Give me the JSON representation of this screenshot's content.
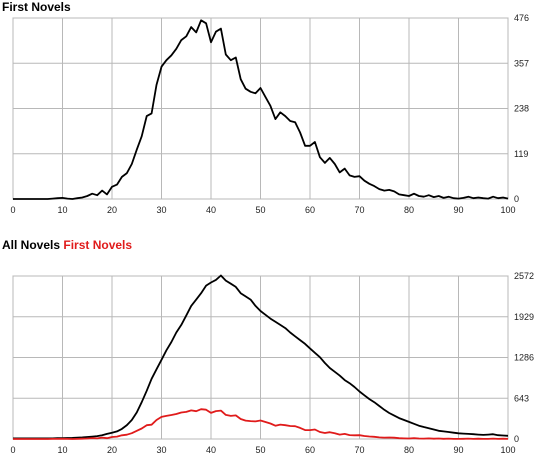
{
  "chart_data": [
    {
      "type": "line",
      "title": "First Novels",
      "xlabel": "",
      "ylabel": "",
      "xlim": [
        0,
        100
      ],
      "ylim": [
        0,
        476
      ],
      "x_ticks": [
        0,
        10,
        20,
        30,
        40,
        50,
        60,
        70,
        80,
        90,
        100
      ],
      "y_ticks": [
        0,
        119,
        238,
        357,
        476
      ],
      "y_axis_side": "right",
      "grid": true,
      "series": [
        {
          "name": "",
          "color": "#000000",
          "x": [
            0,
            1,
            2,
            3,
            4,
            5,
            6,
            7,
            8,
            9,
            10,
            11,
            12,
            13,
            14,
            15,
            16,
            17,
            18,
            19,
            20,
            21,
            22,
            23,
            24,
            25,
            26,
            27,
            28,
            29,
            30,
            31,
            32,
            33,
            34,
            35,
            36,
            37,
            38,
            39,
            40,
            41,
            42,
            43,
            44,
            45,
            46,
            47,
            48,
            49,
            50,
            51,
            52,
            53,
            54,
            55,
            56,
            57,
            58,
            59,
            60,
            61,
            62,
            63,
            64,
            65,
            66,
            67,
            68,
            69,
            70,
            71,
            72,
            73,
            74,
            75,
            76,
            77,
            78,
            79,
            80,
            81,
            82,
            83,
            84,
            85,
            86,
            87,
            88,
            89,
            90,
            91,
            92,
            93,
            94,
            95,
            96,
            97,
            98,
            99,
            100
          ],
          "values": [
            0,
            0,
            0,
            0,
            0,
            0,
            0,
            0,
            1,
            2,
            3,
            1,
            0,
            2,
            4,
            8,
            14,
            10,
            22,
            12,
            32,
            38,
            58,
            68,
            92,
            130,
            165,
            218,
            225,
            300,
            348,
            365,
            378,
            395,
            418,
            428,
            452,
            438,
            470,
            462,
            412,
            440,
            448,
            380,
            365,
            372,
            315,
            290,
            282,
            278,
            292,
            268,
            245,
            210,
            228,
            218,
            205,
            202,
            175,
            140,
            140,
            150,
            110,
            95,
            108,
            92,
            70,
            80,
            62,
            58,
            60,
            48,
            40,
            34,
            26,
            22,
            24,
            20,
            12,
            10,
            8,
            14,
            8,
            6,
            10,
            5,
            8,
            3,
            6,
            2,
            1,
            3,
            6,
            2,
            4,
            2,
            1,
            6,
            2,
            4,
            1
          ]
        }
      ]
    },
    {
      "type": "line",
      "title": "All Novels First Novels",
      "legend": [
        {
          "label": "All Novels",
          "color": "#000000"
        },
        {
          "label": "First Novels",
          "color": "#e01b1b"
        }
      ],
      "xlabel": "",
      "ylabel": "",
      "xlim": [
        0,
        100
      ],
      "ylim": [
        0,
        2572
      ],
      "x_ticks": [
        0,
        10,
        20,
        30,
        40,
        50,
        60,
        70,
        80,
        90,
        100
      ],
      "y_ticks": [
        0,
        643,
        1286,
        1929,
        2572
      ],
      "y_axis_side": "right",
      "grid": true,
      "series": [
        {
          "name": "All Novels",
          "color": "#000000",
          "x": [
            0,
            1,
            2,
            3,
            4,
            5,
            6,
            7,
            8,
            9,
            10,
            11,
            12,
            13,
            14,
            15,
            16,
            17,
            18,
            19,
            20,
            21,
            22,
            23,
            24,
            25,
            26,
            27,
            28,
            29,
            30,
            31,
            32,
            33,
            34,
            35,
            36,
            37,
            38,
            39,
            40,
            41,
            42,
            43,
            44,
            45,
            46,
            47,
            48,
            49,
            50,
            51,
            52,
            53,
            54,
            55,
            56,
            57,
            58,
            59,
            60,
            61,
            62,
            63,
            64,
            65,
            66,
            67,
            68,
            69,
            70,
            71,
            72,
            73,
            74,
            75,
            76,
            77,
            78,
            79,
            80,
            81,
            82,
            83,
            84,
            85,
            86,
            87,
            88,
            89,
            90,
            91,
            92,
            93,
            94,
            95,
            96,
            97,
            98,
            99,
            100
          ],
          "values": [
            10,
            10,
            10,
            10,
            10,
            10,
            10,
            10,
            10,
            12,
            14,
            15,
            18,
            22,
            26,
            32,
            38,
            45,
            60,
            80,
            100,
            120,
            160,
            220,
            300,
            420,
            580,
            760,
            950,
            1100,
            1250,
            1400,
            1530,
            1680,
            1800,
            1950,
            2100,
            2200,
            2300,
            2420,
            2470,
            2510,
            2580,
            2500,
            2450,
            2400,
            2300,
            2250,
            2200,
            2100,
            2020,
            1960,
            1900,
            1850,
            1800,
            1750,
            1680,
            1620,
            1560,
            1500,
            1430,
            1360,
            1290,
            1200,
            1120,
            1060,
            1000,
            930,
            880,
            820,
            750,
            690,
            630,
            580,
            520,
            460,
            410,
            370,
            330,
            300,
            270,
            240,
            210,
            190,
            170,
            150,
            130,
            120,
            110,
            100,
            90,
            85,
            80,
            75,
            70,
            65,
            70,
            75,
            60,
            55,
            50
          ]
        },
        {
          "name": "First Novels",
          "color": "#e01b1b",
          "x": [
            0,
            1,
            2,
            3,
            4,
            5,
            6,
            7,
            8,
            9,
            10,
            11,
            12,
            13,
            14,
            15,
            16,
            17,
            18,
            19,
            20,
            21,
            22,
            23,
            24,
            25,
            26,
            27,
            28,
            29,
            30,
            31,
            32,
            33,
            34,
            35,
            36,
            37,
            38,
            39,
            40,
            41,
            42,
            43,
            44,
            45,
            46,
            47,
            48,
            49,
            50,
            51,
            52,
            53,
            54,
            55,
            56,
            57,
            58,
            59,
            60,
            61,
            62,
            63,
            64,
            65,
            66,
            67,
            68,
            69,
            70,
            71,
            72,
            73,
            74,
            75,
            76,
            77,
            78,
            79,
            80,
            81,
            82,
            83,
            84,
            85,
            86,
            87,
            88,
            89,
            90,
            91,
            92,
            93,
            94,
            95,
            96,
            97,
            98,
            99,
            100
          ],
          "values": [
            0,
            0,
            0,
            0,
            0,
            0,
            0,
            0,
            1,
            2,
            3,
            1,
            0,
            2,
            4,
            8,
            14,
            10,
            22,
            12,
            32,
            38,
            58,
            68,
            92,
            130,
            165,
            218,
            225,
            300,
            348,
            365,
            378,
            395,
            418,
            428,
            452,
            438,
            470,
            462,
            412,
            440,
            448,
            380,
            365,
            372,
            315,
            290,
            282,
            278,
            292,
            268,
            245,
            210,
            228,
            218,
            205,
            202,
            175,
            140,
            140,
            150,
            110,
            95,
            108,
            92,
            70,
            80,
            62,
            58,
            60,
            48,
            40,
            34,
            26,
            22,
            24,
            20,
            12,
            10,
            8,
            14,
            8,
            6,
            10,
            5,
            8,
            3,
            6,
            2,
            1,
            3,
            6,
            2,
            4,
            2,
            1,
            6,
            2,
            4,
            1
          ]
        }
      ]
    }
  ]
}
